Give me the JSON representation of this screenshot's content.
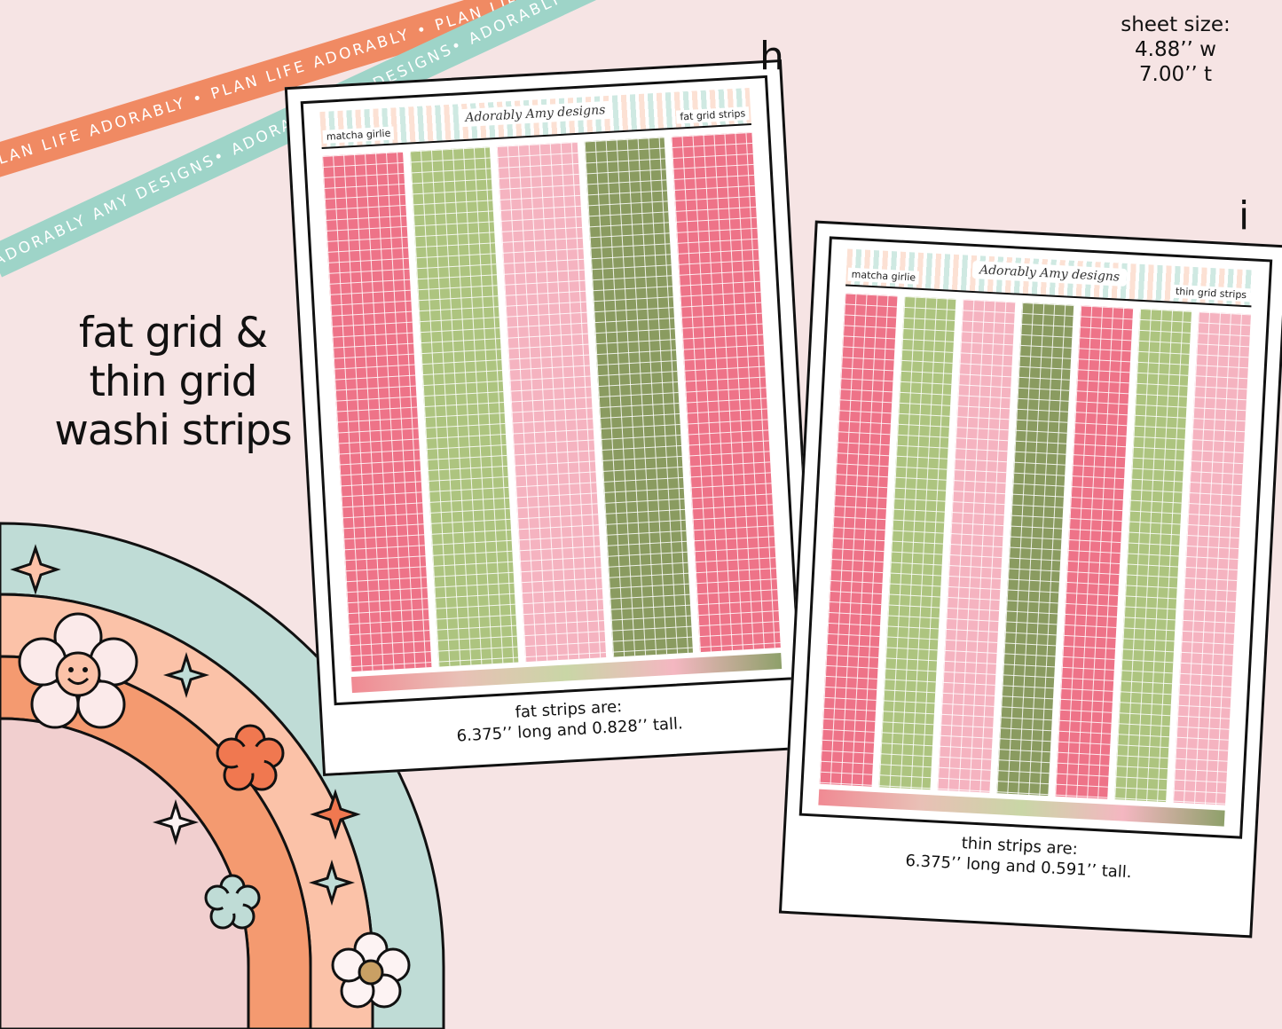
{
  "ribbons": {
    "orange_text": "PLAN LIFE ADORABLY • PLAN LIFE ADORABLY • PLAN LIFE ADORABLY • PLAN LIFE ADORABLY",
    "teal_text": "ADORABLY AMY DESIGNS• ADORABLY AMY DESIGNS• ADORABLY AMY DESIGNS• ADORABLY AMY DESIGNS•"
  },
  "sheet_size": {
    "line1": "sheet size:",
    "line2": "4.88’’ w",
    "line3": "7.00’’ t"
  },
  "headline": {
    "line1": "fat grid &",
    "line2": "thin grid",
    "line3": "washi strips"
  },
  "card_h": {
    "letter": "h",
    "header_left": "matcha girlie",
    "header_right": "fat grid strips",
    "brand": "Adorably Amy designs",
    "strip_colors": [
      "#ee7388",
      "#adc47f",
      "#f5b3c0",
      "#8a9b60",
      "#ee7388"
    ],
    "caption_line1": "fat strips are:",
    "caption_line2": "6.375’’ long and 0.828’’ tall."
  },
  "card_i": {
    "letter": "i",
    "header_left": "matcha girlie",
    "header_right": "thin grid strips",
    "brand": "Adorably Amy designs",
    "strip_colors": [
      "#ee7388",
      "#adc47f",
      "#f5b3c0",
      "#8a9b60",
      "#ee7388",
      "#adc47f",
      "#f5b3c0"
    ],
    "caption_line1": "thin strips are:",
    "caption_line2": "6.375’’ long and 0.591’’ tall."
  },
  "colors": {
    "background": "#f6e4e4",
    "rainbow_teal": "#bfdcd6",
    "rainbow_peach": "#fbc2a8",
    "rainbow_orange": "#f49a70",
    "rainbow_pink": "#f1cfcf"
  }
}
